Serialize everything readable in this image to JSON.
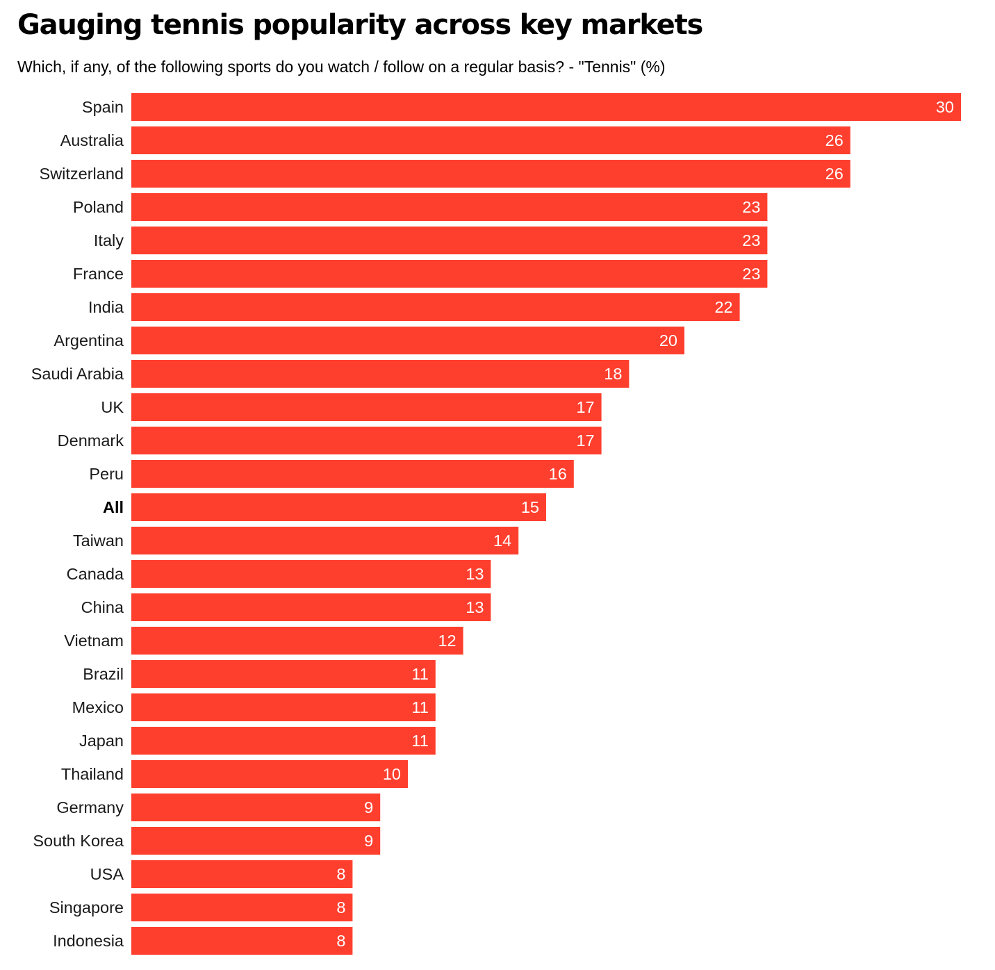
{
  "header": {
    "title": "Gauging tennis popularity across key markets",
    "subtitle": "Which, if any, of the following sports do you watch / follow on a regular basis? - \"Tennis\" (%)"
  },
  "colors": {
    "bar": "#ff3f2e",
    "value_label": "#ffffff",
    "category_label": "#1a1a1a"
  },
  "chart_data": {
    "type": "bar",
    "orientation": "horizontal",
    "title": "Gauging tennis popularity across key markets",
    "subtitle": "Which, if any, of the following sports do you watch / follow on a regular basis? - \"Tennis\" (%)",
    "xlabel": "",
    "ylabel": "",
    "categories": [
      "Spain",
      "Australia",
      "Switzerland",
      "Poland",
      "Italy",
      "France",
      "India",
      "Argentina",
      "Saudi Arabia",
      "UK",
      "Denmark",
      "Peru",
      "All",
      "Taiwan",
      "Canada",
      "China",
      "Vietnam",
      "Brazil",
      "Mexico",
      "Japan",
      "Thailand",
      "Germany",
      "South Korea",
      "USA",
      "Singapore",
      "Indonesia"
    ],
    "values": [
      30,
      26,
      26,
      23,
      23,
      23,
      22,
      20,
      18,
      17,
      17,
      16,
      15,
      14,
      13,
      13,
      12,
      11,
      11,
      11,
      10,
      9,
      9,
      8,
      8,
      8
    ],
    "highlight_category": "All",
    "xlim": [
      0,
      30
    ],
    "grid": false,
    "legend": "none",
    "data_labels": "inside-end"
  }
}
